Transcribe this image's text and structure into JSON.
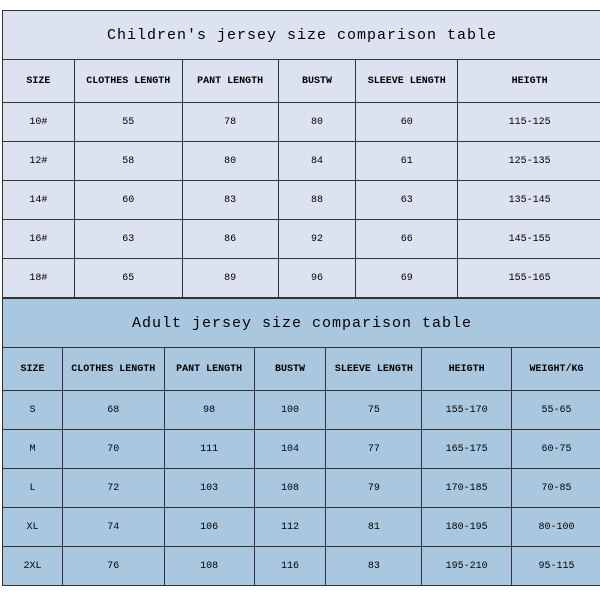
{
  "children": {
    "title": "Children's jersey size comparison table",
    "columns": [
      "SIZE",
      "CLOTHES LENGTH",
      "PANT LENGTH",
      "BUSTW",
      "SLEEVE LENGTH",
      "HEIGTH"
    ],
    "col_widths_pct": [
      12,
      18,
      16,
      13,
      17,
      24
    ],
    "rows": [
      [
        "10#",
        "55",
        "78",
        "80",
        "60",
        "115-125"
      ],
      [
        "12#",
        "58",
        "80",
        "84",
        "61",
        "125-135"
      ],
      [
        "14#",
        "60",
        "83",
        "88",
        "63",
        "135-145"
      ],
      [
        "16#",
        "63",
        "86",
        "92",
        "66",
        "145-155"
      ],
      [
        "18#",
        "65",
        "89",
        "96",
        "69",
        "155-165"
      ]
    ],
    "bg_color": "#dde2f1"
  },
  "adult": {
    "title": "Adult jersey size comparison table",
    "columns": [
      "SIZE",
      "CLOTHES LENGTH",
      "PANT LENGTH",
      "BUSTW",
      "SLEEVE LENGTH",
      "HEIGTH",
      "WEIGHT/KG"
    ],
    "col_widths_pct": [
      10,
      17,
      15,
      12,
      16,
      15,
      15
    ],
    "rows": [
      [
        "S",
        "68",
        "98",
        "100",
        "75",
        "155-170",
        "55-65"
      ],
      [
        "M",
        "70",
        "111",
        "104",
        "77",
        "165-175",
        "60-75"
      ],
      [
        "L",
        "72",
        "103",
        "108",
        "79",
        "170-185",
        "70-85"
      ],
      [
        "XL",
        "74",
        "106",
        "112",
        "81",
        "180-195",
        "80-100"
      ],
      [
        "2XL",
        "76",
        "108",
        "116",
        "83",
        "195-210",
        "95-115"
      ]
    ],
    "bg_color": "#a9c8e0"
  },
  "border_color": "#333333",
  "font_family": "Courier New, monospace",
  "title_fontsize": 15,
  "header_fontsize": 10,
  "cell_fontsize": 10
}
